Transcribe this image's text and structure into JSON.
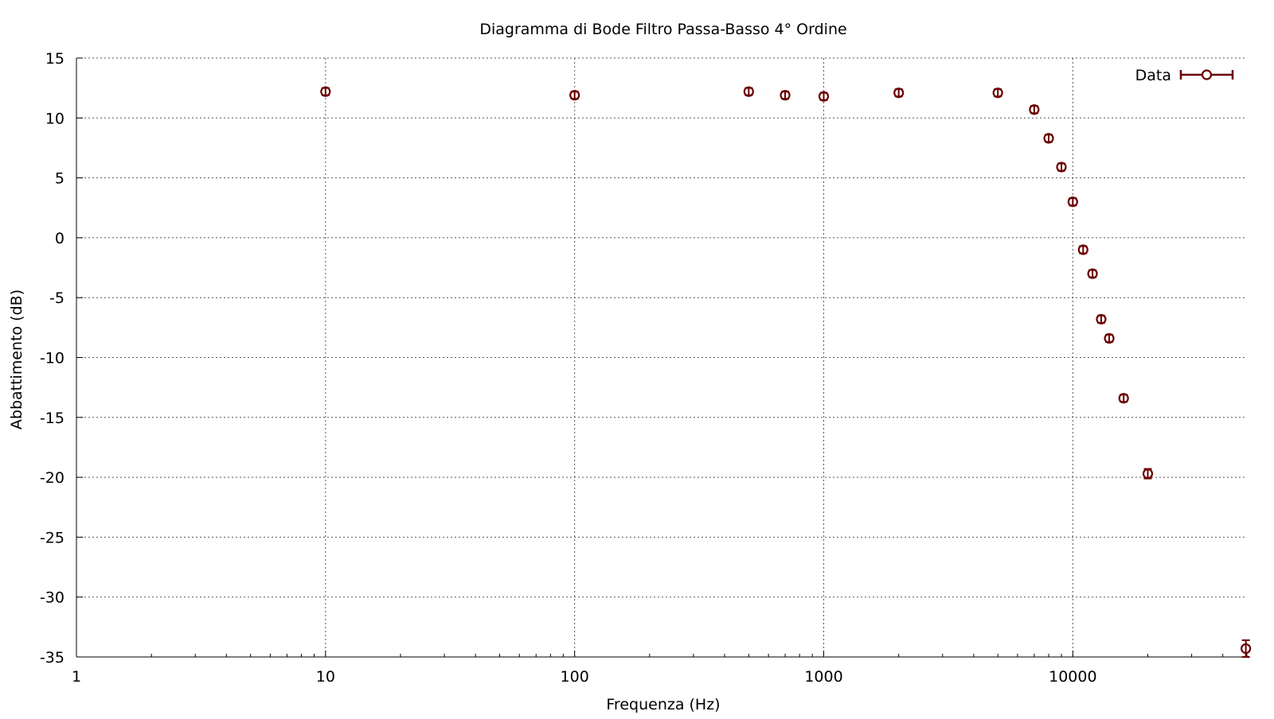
{
  "chart_data": {
    "type": "scatter",
    "title": "Diagramma di Bode Filtro Passa-Basso 4° Ordine",
    "xlabel": "Frequenza (Hz)",
    "ylabel": "Abbattimento (dB)",
    "xscale": "log",
    "xlim": [
      1,
      50000
    ],
    "ylim": [
      -35,
      15
    ],
    "xticks": [
      {
        "value": 1,
        "label": "1"
      },
      {
        "value": 10,
        "label": "10"
      },
      {
        "value": 100,
        "label": "100"
      },
      {
        "value": 1000,
        "label": "1000"
      },
      {
        "value": 10000,
        "label": "10000"
      }
    ],
    "yticks": [
      {
        "value": 15,
        "label": "15"
      },
      {
        "value": 10,
        "label": "10"
      },
      {
        "value": 5,
        "label": "5"
      },
      {
        "value": 0,
        "label": "0"
      },
      {
        "value": -5,
        "label": "-5"
      },
      {
        "value": -10,
        "label": "-10"
      },
      {
        "value": -15,
        "label": "-15"
      },
      {
        "value": -20,
        "label": "-20"
      },
      {
        "value": -25,
        "label": "-25"
      },
      {
        "value": -30,
        "label": "-30"
      },
      {
        "value": -35,
        "label": "-35"
      }
    ],
    "grid": true,
    "legend_position": "top-right",
    "color": "#6b0000",
    "series": [
      {
        "name": "Data",
        "marker": "open-circle",
        "error_bars": "y",
        "points": [
          {
            "x": 10,
            "y": 12.2,
            "err": 0.3
          },
          {
            "x": 100,
            "y": 11.9,
            "err": 0.3
          },
          {
            "x": 500,
            "y": 12.2,
            "err": 0.3
          },
          {
            "x": 700,
            "y": 11.9,
            "err": 0.3
          },
          {
            "x": 1000,
            "y": 11.8,
            "err": 0.3
          },
          {
            "x": 2000,
            "y": 12.1,
            "err": 0.3
          },
          {
            "x": 5000,
            "y": 12.1,
            "err": 0.3
          },
          {
            "x": 7000,
            "y": 10.7,
            "err": 0.3
          },
          {
            "x": 8000,
            "y": 8.3,
            "err": 0.3
          },
          {
            "x": 9000,
            "y": 5.9,
            "err": 0.3
          },
          {
            "x": 10000,
            "y": 3.0,
            "err": 0.3
          },
          {
            "x": 11000,
            "y": -1.0,
            "err": 0.3
          },
          {
            "x": 12000,
            "y": -3.0,
            "err": 0.3
          },
          {
            "x": 13000,
            "y": -6.8,
            "err": 0.3
          },
          {
            "x": 14000,
            "y": -8.4,
            "err": 0.3
          },
          {
            "x": 16000,
            "y": -13.4,
            "err": 0.3
          },
          {
            "x": 20000,
            "y": -19.7,
            "err": 0.4
          },
          {
            "x": 49500,
            "y": -34.3,
            "err": 0.7
          }
        ]
      }
    ]
  }
}
